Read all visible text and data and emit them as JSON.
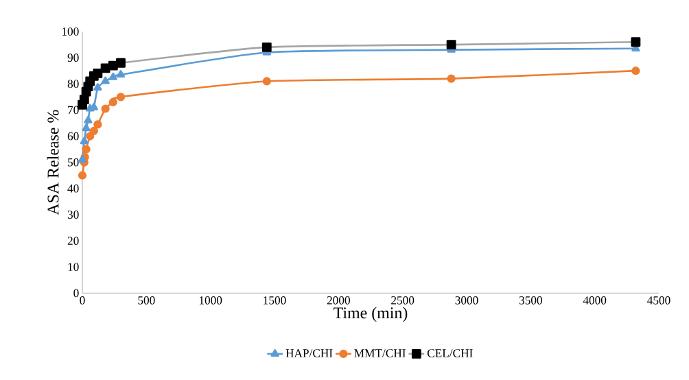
{
  "chart_data": {
    "type": "line",
    "xlabel": "Time (min)",
    "ylabel": "ASA Release %",
    "xlim": [
      0,
      4500
    ],
    "xticks": [
      0,
      500,
      1000,
      1500,
      2000,
      2500,
      3000,
      3500,
      4000,
      4500
    ],
    "ylim": [
      0,
      100
    ],
    "yticks": [
      0,
      10,
      20,
      30,
      40,
      50,
      60,
      70,
      80,
      90,
      100
    ],
    "grid": false,
    "legend": "bottom",
    "series": [
      {
        "name": "HAP/CHI",
        "color": "#5b9bd5",
        "marker": "triangle",
        "x": [
          0,
          15,
          30,
          45,
          60,
          90,
          120,
          180,
          240,
          300,
          1440,
          2880,
          4320
        ],
        "values": [
          51,
          58,
          63,
          66,
          70.5,
          71,
          78.5,
          81,
          82.5,
          83.5,
          92,
          93,
          93.5
        ]
      },
      {
        "name": "MMT/CHI",
        "color": "#ed7d31",
        "marker": "circle",
        "x": [
          0,
          15,
          20,
          30,
          60,
          90,
          120,
          180,
          240,
          300,
          1440,
          2880,
          4320
        ],
        "values": [
          45,
          50,
          52,
          55,
          60,
          62,
          64.5,
          70.5,
          73,
          75,
          81,
          82,
          85
        ]
      },
      {
        "name": "CEL/CHI",
        "color": "#a5a5a5",
        "marker": "square",
        "x": [
          0,
          15,
          30,
          45,
          60,
          90,
          120,
          180,
          240,
          300,
          1440,
          2880,
          4320
        ],
        "values": [
          72,
          74,
          77,
          79,
          81,
          83,
          84,
          86,
          87,
          88,
          94,
          95,
          96
        ]
      }
    ]
  }
}
